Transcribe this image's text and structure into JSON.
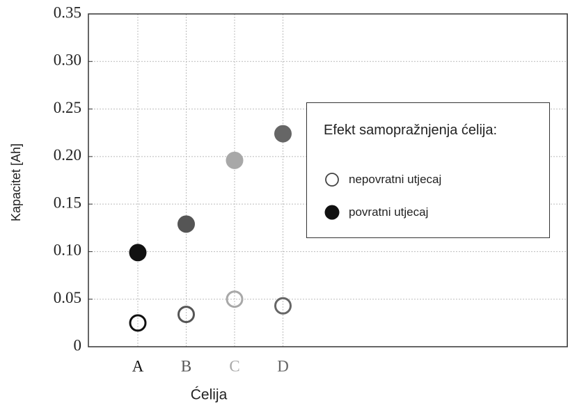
{
  "chart_data": {
    "type": "scatter",
    "y_label": "Kapacitet [Ah]",
    "x_label": "Ćelija",
    "categories": [
      "A",
      "B",
      "C",
      "D"
    ],
    "category_colors": [
      "#111111",
      "#555555",
      "#a8a8a8",
      "#666666"
    ],
    "legend_title": "Efekt samopražnjenja ćelija:",
    "series": [
      {
        "name": "nepovratni utjecaj",
        "color": "#444444",
        "filled": false,
        "values": [
          0.025,
          0.034,
          0.05,
          0.043
        ]
      },
      {
        "name": "povratni utjecaj",
        "color": "#111111",
        "filled": true,
        "values": [
          0.099,
          0.129,
          0.196,
          0.224
        ]
      }
    ],
    "ylim": [
      0,
      0.35
    ],
    "yticks": [
      0,
      0.05,
      {
        "value": 0.1,
        "label": "0.10"
      },
      0.15,
      {
        "value": 0.2,
        "label": "0.20"
      },
      0.25,
      {
        "value": 0.3,
        "label": "0.30"
      },
      0.35
    ],
    "grid": true
  }
}
